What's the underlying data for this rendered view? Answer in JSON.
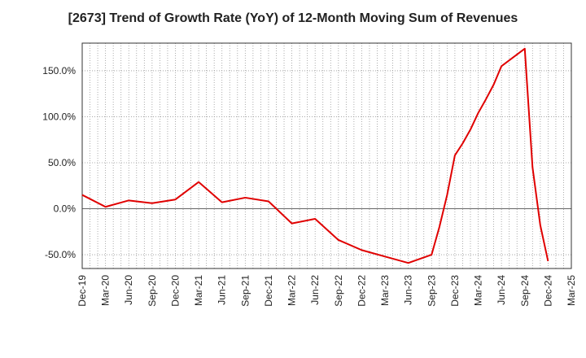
{
  "chart_data": {
    "type": "line",
    "title": "[2673]  Trend of Growth Rate (YoY) of 12-Month Moving Sum of Revenues",
    "xlabel": "",
    "ylabel": "",
    "x_tick_labels": [
      "Dec-19",
      "Mar-20",
      "Jun-20",
      "Sep-20",
      "Dec-20",
      "Mar-21",
      "Jun-21",
      "Sep-21",
      "Dec-21",
      "Mar-22",
      "Jun-22",
      "Sep-22",
      "Dec-22",
      "Mar-23",
      "Jun-23",
      "Sep-23",
      "Dec-23",
      "Mar-24",
      "Jun-24",
      "Sep-24",
      "Dec-24",
      "Mar-25"
    ],
    "y_ticks": [
      -50,
      0,
      50,
      100,
      150
    ],
    "y_tick_labels": [
      "-50.0%",
      "0.0%",
      "50.0%",
      "100.0%",
      "150.0%"
    ],
    "ylim": [
      -65,
      180
    ],
    "grid": true,
    "series": [
      {
        "color": "#e00000",
        "points": [
          {
            "x": "Dec-19",
            "y": 15
          },
          {
            "x": "Mar-20",
            "y": 2
          },
          {
            "x": "Jun-20",
            "y": 9
          },
          {
            "x": "Sep-20",
            "y": 6
          },
          {
            "x": "Dec-20",
            "y": 10
          },
          {
            "x": "Mar-21",
            "y": 29
          },
          {
            "x": "Jun-21",
            "y": 7
          },
          {
            "x": "Sep-21",
            "y": 12
          },
          {
            "x": "Dec-21",
            "y": 8
          },
          {
            "x": "Mar-22",
            "y": -16
          },
          {
            "x": "Jun-22",
            "y": -11
          },
          {
            "x": "Sep-22",
            "y": -34
          },
          {
            "x": "Dec-22",
            "y": -45
          },
          {
            "x": "Mar-23",
            "y": -52
          },
          {
            "x": "Jun-23",
            "y": -59
          },
          {
            "x": "Sep-23",
            "y": -50
          },
          {
            "x": "Oct-23",
            "y": -20
          },
          {
            "x": "Nov-23",
            "y": 15
          },
          {
            "x": "Dec-23",
            "y": 58
          },
          {
            "x": "Jan-24",
            "y": 71
          },
          {
            "x": "Feb-24",
            "y": 86
          },
          {
            "x": "Mar-24",
            "y": 104
          },
          {
            "x": "Apr-24",
            "y": 119
          },
          {
            "x": "May-24",
            "y": 135
          },
          {
            "x": "Jun-24",
            "y": 155
          },
          {
            "x": "Sep-24",
            "y": 174
          },
          {
            "x": "Oct-24",
            "y": 45
          },
          {
            "x": "Nov-24",
            "y": -18
          },
          {
            "x": "Dec-24",
            "y": -57
          }
        ]
      }
    ]
  }
}
